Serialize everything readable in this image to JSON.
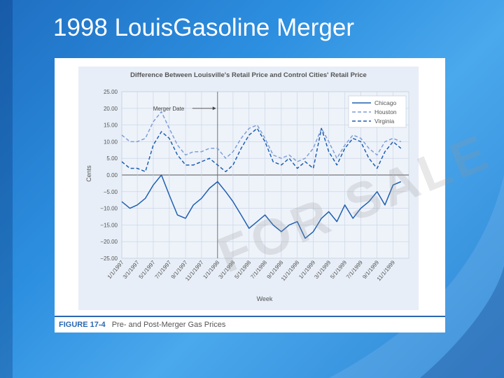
{
  "slide": {
    "title": "1998 Louis​Gasoline Merger",
    "title_plain": "1998 LouisGasoline Merger",
    "background_color": "#2d8fe0"
  },
  "figure": {
    "caption_label": "FIGURE 17-4",
    "caption_text": "Pre- and Post-Merger Gas Prices",
    "watermark": "FOR SALE"
  },
  "chart_data": {
    "type": "line",
    "title": "Difference Between Louisville's Retail Price and Control Cities' Retail Price",
    "xlabel": "Week",
    "ylabel": "Cents",
    "ylim": [
      -25,
      25
    ],
    "yticks": [
      "25.00",
      "20.00",
      "15.00",
      "10.00",
      "5.00",
      "0.00",
      "−5.00",
      "−10.00",
      "−15.00",
      "−20.00",
      "−25.00"
    ],
    "x_tick_labels": [
      "1/1/1997",
      "3/1/1997",
      "5/1/1997",
      "7/1/1997",
      "9/1/1997",
      "11/1/1997",
      "1/1/1998",
      "3/1/1998",
      "5/1/1998",
      "7/1/1998",
      "9/1/1998",
      "11/1/1998",
      "1/1/1999",
      "3/1/1999",
      "5/1/1999",
      "7/1/1999",
      "9/1/1999",
      "11/1/1999"
    ],
    "x_range": [
      "1/1/1997",
      "12/31/1999"
    ],
    "annotation": {
      "text": "Merger Date",
      "x": "1/1/1998"
    },
    "legend_position": "top-right",
    "grid": true,
    "zero_line": true,
    "series": [
      {
        "name": "Chicago",
        "style": "solid",
        "color": "#1f5fb0",
        "x": [
          "1/1/1997",
          "2/1/1997",
          "3/1/1997",
          "4/1/1997",
          "5/1/1997",
          "6/1/1997",
          "7/1/1997",
          "8/1/1997",
          "9/1/1997",
          "10/1/1997",
          "11/1/1997",
          "12/1/1997",
          "1/1/1998",
          "2/1/1998",
          "3/1/1998",
          "4/1/1998",
          "5/1/1998",
          "6/1/1998",
          "7/1/1998",
          "8/1/1998",
          "9/1/1998",
          "10/1/1998",
          "11/1/1998",
          "12/1/1998",
          "1/1/1999",
          "2/1/1999",
          "3/1/1999",
          "4/1/1999",
          "5/1/1999",
          "6/1/1999",
          "7/1/1999",
          "8/1/1999",
          "9/1/1999",
          "10/1/1999",
          "11/1/1999",
          "12/1/1999"
        ],
        "values": [
          -8,
          -10,
          -9,
          -7,
          -3,
          0,
          -6,
          -12,
          -13,
          -9,
          -7,
          -4,
          -2,
          -5,
          -8,
          -12,
          -16,
          -14,
          -12,
          -15,
          -17,
          -15,
          -14,
          -19,
          -17,
          -13,
          -11,
          -14,
          -9,
          -13,
          -10,
          -8,
          -5,
          -9,
          -3,
          -2
        ]
      },
      {
        "name": "Houston",
        "style": "dashed",
        "color": "#7f9fd8",
        "x": [
          "1/1/1997",
          "2/1/1997",
          "3/1/1997",
          "4/1/1997",
          "5/1/1997",
          "6/1/1997",
          "7/1/1997",
          "8/1/1997",
          "9/1/1997",
          "10/1/1997",
          "11/1/1997",
          "12/1/1997",
          "1/1/1998",
          "2/1/1998",
          "3/1/1998",
          "4/1/1998",
          "5/1/1998",
          "6/1/1998",
          "7/1/1998",
          "8/1/1998",
          "9/1/1998",
          "10/1/1998",
          "11/1/1998",
          "12/1/1998",
          "1/1/1999",
          "2/1/1999",
          "3/1/1999",
          "4/1/1999",
          "5/1/1999",
          "6/1/1999",
          "7/1/1999",
          "8/1/1999",
          "9/1/1999",
          "10/1/1999",
          "11/1/1999",
          "12/1/1999"
        ],
        "values": [
          12,
          10,
          10,
          11,
          16,
          19,
          14,
          9,
          6,
          7,
          7,
          8,
          8,
          5,
          7,
          11,
          14,
          15,
          11,
          6,
          5,
          6,
          4,
          5,
          8,
          14,
          10,
          5,
          9,
          12,
          11,
          8,
          6,
          10,
          11,
          10
        ]
      },
      {
        "name": "Virginia",
        "style": "dashed",
        "color": "#1f5fb0",
        "x": [
          "1/1/1997",
          "2/1/1997",
          "3/1/1997",
          "4/1/1997",
          "5/1/1997",
          "6/1/1997",
          "7/1/1997",
          "8/1/1997",
          "9/1/1997",
          "10/1/1997",
          "11/1/1997",
          "12/1/1997",
          "1/1/1998",
          "2/1/1998",
          "3/1/1998",
          "4/1/1998",
          "5/1/1998",
          "6/1/1998",
          "7/1/1998",
          "8/1/1998",
          "9/1/1998",
          "10/1/1998",
          "11/1/1998",
          "12/1/1998",
          "1/1/1999",
          "2/1/1999",
          "3/1/1999",
          "4/1/1999",
          "5/1/1999",
          "6/1/1999",
          "7/1/1999",
          "8/1/1999",
          "9/1/1999",
          "10/1/1999",
          "11/1/1999",
          "12/1/1999"
        ],
        "values": [
          4,
          2,
          2,
          1,
          9,
          13,
          11,
          6,
          3,
          3,
          4,
          5,
          3,
          1,
          3,
          8,
          12,
          14,
          10,
          4,
          3,
          5,
          2,
          4,
          2,
          14,
          7,
          3,
          8,
          11,
          10,
          5,
          2,
          7,
          10,
          8
        ]
      }
    ]
  }
}
